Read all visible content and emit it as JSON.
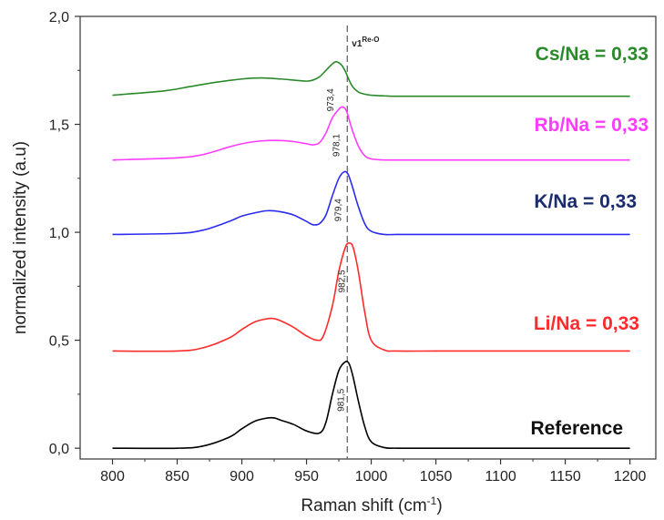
{
  "chart_data": {
    "type": "line",
    "xlabel": "Raman shift (cm",
    "xlabel_sup": "-1",
    "xlabel_end": ")",
    "ylabel": "normalized intensity (a.u)",
    "xlim": [
      775,
      1220
    ],
    "ylim": [
      -0.05,
      2.0
    ],
    "x_ticks": [
      800,
      850,
      900,
      950,
      1000,
      1050,
      1100,
      1150,
      1200
    ],
    "x_tick_labels": [
      "800",
      "850",
      "900",
      "950",
      "1000",
      "1050",
      "1100",
      "1150",
      "1200"
    ],
    "y_ticks": [
      0.0,
      0.5,
      1.0,
      1.5,
      2.0
    ],
    "y_tick_labels": [
      "0,0",
      "0,5",
      "1,0",
      "1,5",
      "2,0"
    ],
    "reference_line": {
      "x": 981.5,
      "label": "v1",
      "label_sup": "Re-O"
    },
    "series": [
      {
        "name": "Reference",
        "color": "#000000",
        "peak_label": "981,5",
        "x": [
          800,
          850,
          870,
          890,
          900,
          910,
          920,
          925,
          930,
          940,
          950,
          960,
          965,
          970,
          975,
          980,
          983,
          986,
          990,
          995,
          1000,
          1010,
          1020,
          1050,
          1100,
          1200
        ],
        "y": [
          0.0,
          0.0,
          0.01,
          0.05,
          0.09,
          0.125,
          0.14,
          0.14,
          0.13,
          0.11,
          0.08,
          0.07,
          0.12,
          0.25,
          0.36,
          0.4,
          0.39,
          0.33,
          0.22,
          0.1,
          0.03,
          0.003,
          0.0,
          0.0,
          0.0,
          0.0
        ]
      },
      {
        "name": "Li/Na = 0,33",
        "color": "#ff2a2a",
        "peak_label": "982,5",
        "x": [
          800,
          850,
          870,
          890,
          900,
          910,
          920,
          925,
          930,
          940,
          950,
          958,
          963,
          970,
          975,
          980,
          983,
          986,
          990,
          995,
          1000,
          1010,
          1020,
          1050,
          1100,
          1200
        ],
        "y": [
          0.45,
          0.45,
          0.465,
          0.51,
          0.55,
          0.585,
          0.6,
          0.6,
          0.59,
          0.56,
          0.52,
          0.5,
          0.52,
          0.66,
          0.82,
          0.93,
          0.95,
          0.93,
          0.82,
          0.63,
          0.5,
          0.455,
          0.45,
          0.45,
          0.45,
          0.45
        ]
      },
      {
        "name": "K/Na = 0,33",
        "color": "#2b2bf0",
        "peak_label": "979,4",
        "x": [
          800,
          850,
          870,
          890,
          900,
          910,
          920,
          930,
          940,
          950,
          955,
          960,
          965,
          970,
          975,
          979,
          982,
          985,
          990,
          995,
          1000,
          1010,
          1020,
          1050,
          1100,
          1200
        ],
        "y": [
          0.99,
          0.995,
          1.01,
          1.05,
          1.075,
          1.09,
          1.1,
          1.095,
          1.08,
          1.05,
          1.035,
          1.04,
          1.08,
          1.17,
          1.25,
          1.28,
          1.27,
          1.22,
          1.12,
          1.04,
          1.005,
          0.99,
          0.99,
          0.99,
          0.99,
          0.99
        ]
      },
      {
        "name": "Rb/Na = 0,33",
        "color": "#ff3cff",
        "peak_label": "978,1",
        "x": [
          800,
          850,
          870,
          890,
          900,
          910,
          920,
          930,
          940,
          950,
          955,
          960,
          965,
          970,
          975,
          978,
          981,
          985,
          990,
          995,
          1000,
          1010,
          1020,
          1050,
          1100,
          1200
        ],
        "y": [
          1.335,
          1.345,
          1.36,
          1.395,
          1.41,
          1.42,
          1.425,
          1.425,
          1.42,
          1.41,
          1.405,
          1.415,
          1.46,
          1.53,
          1.57,
          1.58,
          1.56,
          1.48,
          1.4,
          1.355,
          1.34,
          1.335,
          1.335,
          1.335,
          1.335,
          1.335
        ]
      },
      {
        "name": "Cs/Na = 0,33",
        "color": "#2a8a2a",
        "peak_label": "973,4",
        "x": [
          800,
          840,
          860,
          880,
          900,
          915,
          930,
          940,
          950,
          955,
          960,
          965,
          970,
          973,
          977,
          980,
          985,
          990,
          995,
          1000,
          1010,
          1020,
          1050,
          1100,
          1200
        ],
        "y": [
          1.635,
          1.655,
          1.675,
          1.695,
          1.71,
          1.715,
          1.71,
          1.705,
          1.7,
          1.705,
          1.72,
          1.75,
          1.78,
          1.79,
          1.775,
          1.745,
          1.68,
          1.65,
          1.64,
          1.635,
          1.632,
          1.63,
          1.63,
          1.63,
          1.63
        ]
      }
    ]
  }
}
